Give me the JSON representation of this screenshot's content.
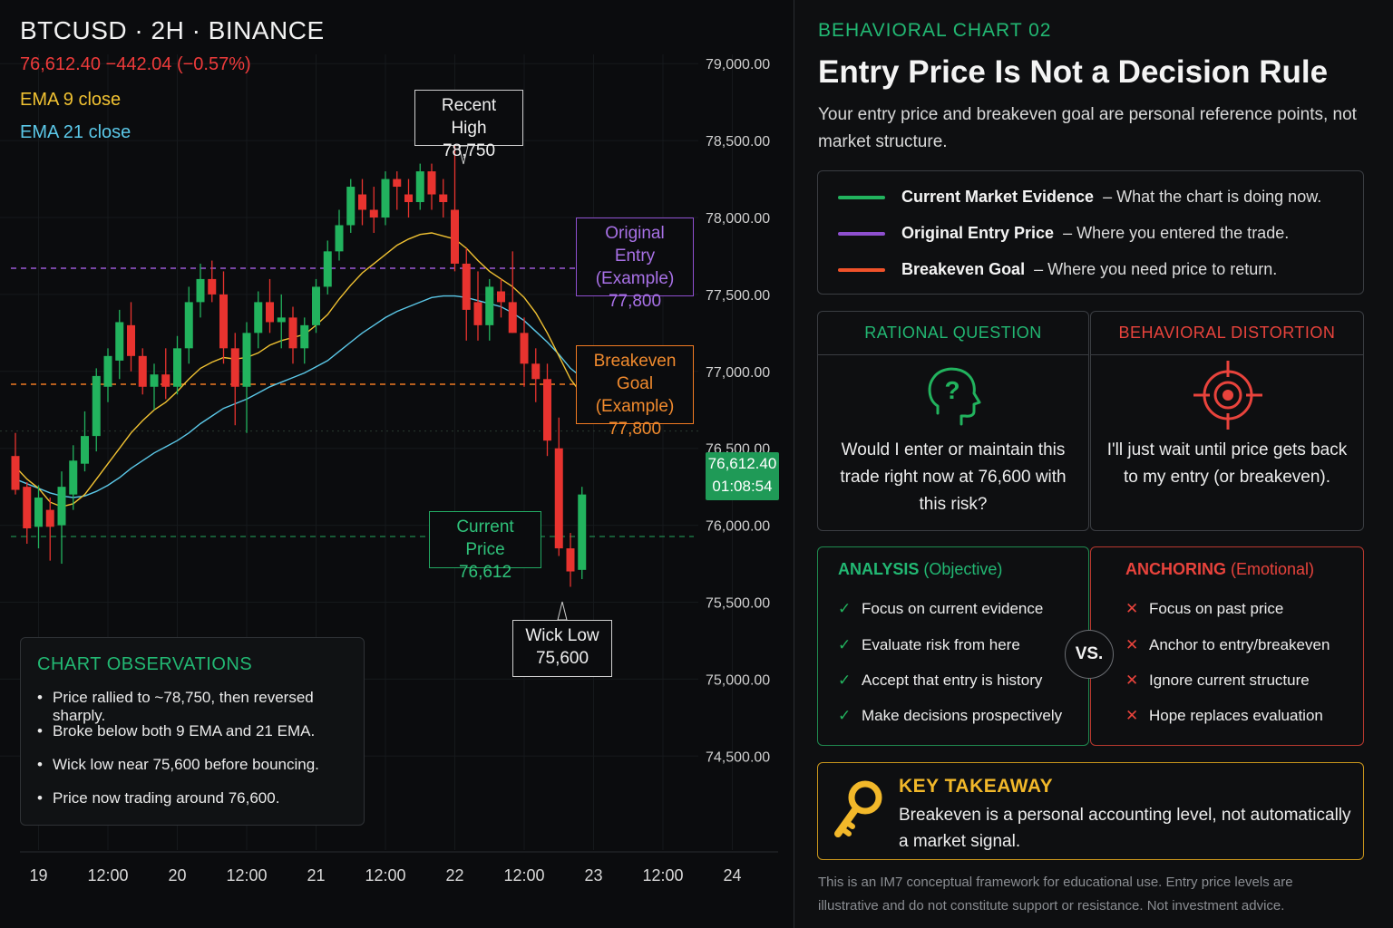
{
  "header": {
    "symbol": "BTCUSD · 2H · BINANCE",
    "quote": "76,612.40  −442.04 (−0.57%)",
    "ema9_label": "EMA 9 close",
    "ema21_label": "EMA 21 close"
  },
  "callouts": {
    "recent_high": [
      "Recent High",
      "78,750"
    ],
    "original_entry": [
      "Original Entry",
      "(Example)",
      "77,800"
    ],
    "breakeven_goal": [
      "Breakeven Goal",
      "(Example)",
      "77,800"
    ],
    "current_price": [
      "Current Price",
      "76,612"
    ],
    "wick_low": [
      "Wick Low",
      "75,600"
    ]
  },
  "price_tag": {
    "price": "76,612.40",
    "countdown": "01:08:54",
    "overlapped_label": "76,000.00"
  },
  "observations": {
    "title": "CHART OBSERVATIONS",
    "items": [
      "Price rallied to ~78,750, then reversed sharply.",
      "Broke below both 9 EMA and 21 EMA.",
      "Wick low near 75,600 before bouncing.",
      "Price now trading around 76,600."
    ]
  },
  "colors": {
    "up": "#22b35e",
    "down": "#e8332f",
    "ema9": "#f1c232",
    "ema21": "#5bc8e8",
    "entry": "#9b59d6",
    "breakeven": "#f07a22",
    "accent_green": "#22b873",
    "accent_red": "#e8433c",
    "key_gold": "#f2b82a"
  },
  "chart_data": {
    "type": "candlestick",
    "title": "BTCUSD · 2H · BINANCE",
    "ylim": [
      74250,
      79200
    ],
    "y_ticks": [
      "79,000.00",
      "78,500.00",
      "78,000.00",
      "77,500.00",
      "77,000.00",
      "76,500.00",
      "76,000.00",
      "75,500.00",
      "75,000.00",
      "74,500.00"
    ],
    "y_tick_values": [
      79000,
      78500,
      78000,
      77500,
      77000,
      76500,
      76000,
      75500,
      75000,
      74500
    ],
    "x_ticks": [
      "19",
      "12:00",
      "20",
      "12:00",
      "21",
      "12:00",
      "22",
      "12:00",
      "23",
      "12:00",
      "24"
    ],
    "x_tick_index": [
      2,
      8,
      14,
      20,
      26,
      32,
      38,
      44,
      50,
      56,
      62
    ],
    "candles": [
      [
        76450,
        76600,
        76200,
        76230
      ],
      [
        76250,
        76280,
        75880,
        75980
      ],
      [
        75990,
        76260,
        75850,
        76180
      ],
      [
        76100,
        76180,
        75770,
        75990
      ],
      [
        76000,
        76350,
        75750,
        76250
      ],
      [
        76200,
        76520,
        76100,
        76420
      ],
      [
        76400,
        76740,
        76350,
        76580
      ],
      [
        76580,
        77020,
        76480,
        76970
      ],
      [
        76900,
        77150,
        76800,
        77100
      ],
      [
        77070,
        77400,
        76950,
        77320
      ],
      [
        77300,
        77450,
        77000,
        77100
      ],
      [
        77100,
        77150,
        76850,
        76900
      ],
      [
        76900,
        77050,
        76750,
        76980
      ],
      [
        76980,
        77150,
        76820,
        76900
      ],
      [
        76900,
        77230,
        76850,
        77150
      ],
      [
        77150,
        77550,
        77050,
        77450
      ],
      [
        77450,
        77700,
        77350,
        77600
      ],
      [
        77600,
        77720,
        77450,
        77500
      ],
      [
        77500,
        77650,
        77050,
        77150
      ],
      [
        77150,
        77250,
        76650,
        76900
      ],
      [
        76900,
        77320,
        76600,
        77250
      ],
      [
        77250,
        77520,
        77150,
        77450
      ],
      [
        77450,
        77600,
        77250,
        77320
      ],
      [
        77320,
        77500,
        77150,
        77350
      ],
      [
        77350,
        77420,
        77050,
        77150
      ],
      [
        77150,
        77350,
        77050,
        77300
      ],
      [
        77300,
        77600,
        77250,
        77550
      ],
      [
        77550,
        77850,
        77500,
        77780
      ],
      [
        77780,
        78050,
        77720,
        77950
      ],
      [
        77950,
        78250,
        77900,
        78200
      ],
      [
        78150,
        78250,
        77950,
        78050
      ],
      [
        78050,
        78200,
        77900,
        78000
      ],
      [
        78000,
        78300,
        77950,
        78250
      ],
      [
        78250,
        78300,
        78050,
        78200
      ],
      [
        78150,
        78250,
        78000,
        78100
      ],
      [
        78100,
        78350,
        78050,
        78300
      ],
      [
        78300,
        78350,
        78050,
        78150
      ],
      [
        78150,
        78250,
        78000,
        78100
      ],
      [
        78050,
        78750,
        77650,
        77700
      ],
      [
        77700,
        77800,
        77200,
        77400
      ],
      [
        77450,
        77650,
        77200,
        77300
      ],
      [
        77300,
        77600,
        77200,
        77550
      ],
      [
        77520,
        77600,
        77350,
        77450
      ],
      [
        77450,
        77780,
        77250,
        77250
      ],
      [
        77250,
        77350,
        76900,
        77050
      ],
      [
        77050,
        77150,
        76800,
        76950
      ],
      [
        76950,
        77050,
        76450,
        76550
      ],
      [
        76500,
        76700,
        75800,
        75850
      ],
      [
        75850,
        75950,
        75600,
        75700
      ],
      [
        75710,
        76250,
        75650,
        76200
      ]
    ],
    "ema9": [
      76380,
      76300,
      76240,
      76150,
      76120,
      76140,
      76200,
      76300,
      76400,
      76500,
      76600,
      76680,
      76750,
      76800,
      76870,
      76950,
      77020,
      77060,
      77090,
      77080,
      77090,
      77120,
      77170,
      77200,
      77220,
      77240,
      77300,
      77370,
      77470,
      77560,
      77640,
      77700,
      77760,
      77820,
      77860,
      77890,
      77900,
      77880,
      77860,
      77800,
      77720,
      77650,
      77600,
      77550,
      77480,
      77380,
      77250,
      77100,
      76950,
      76850
    ],
    "ema21": [
      76300,
      76270,
      76240,
      76210,
      76190,
      76180,
      76190,
      76220,
      76260,
      76310,
      76370,
      76420,
      76470,
      76510,
      76550,
      76600,
      76660,
      76710,
      76760,
      76790,
      76820,
      76860,
      76900,
      76930,
      76960,
      76990,
      77030,
      77070,
      77130,
      77190,
      77250,
      77300,
      77350,
      77390,
      77420,
      77450,
      77480,
      77490,
      77490,
      77480,
      77460,
      77440,
      77420,
      77380,
      77330,
      77260,
      77190,
      77110,
      77020,
      76960
    ],
    "levels": {
      "original_entry": 77800,
      "breakeven_goal": 77800,
      "current_price": 76612.4
    }
  },
  "panel": {
    "kicker": "BEHAVIORAL CHART 02",
    "title": "Entry Price Is Not a Decision Rule",
    "subtitle": "Your entry price and breakeven goal are personal reference points, not market structure.",
    "legend": [
      {
        "name": "Current Market Evidence",
        "desc": "–  What the chart is doing now.",
        "color": "#22b35e"
      },
      {
        "name": "Original Entry Price",
        "desc": "–  Where you entered the trade.",
        "color": "#8e4fcf"
      },
      {
        "name": "Breakeven Goal",
        "desc": "–  Where you need price to return.",
        "color": "#f0522a"
      }
    ],
    "rational": {
      "header": "RATIONAL QUESTION",
      "text": "Would I enter or maintain this trade right now at 76,600 with this risk?",
      "icon": "head-question-icon"
    },
    "distortion": {
      "header": "BEHAVIORAL DISTORTION",
      "text": "I'll just wait until price gets back to my entry (or breakeven).",
      "icon": "target-icon"
    },
    "analysis": {
      "header": "ANALYSIS",
      "header_note": "(Objective)",
      "items": [
        "Focus on current evidence",
        "Evaluate risk from here",
        "Accept that entry is history",
        "Make decisions prospectively"
      ]
    },
    "anchoring": {
      "header": "ANCHORING",
      "header_note": "(Emotional)",
      "items": [
        "Focus on past price",
        "Anchor to entry/breakeven",
        "Ignore current structure",
        "Hope replaces evaluation"
      ]
    },
    "vs": "VS.",
    "takeaway": {
      "title": "KEY TAKEAWAY",
      "text": "Breakeven is a personal accounting level, not automatically a market signal."
    },
    "disclaimer": "This is an IM7 conceptual framework for educational use. Entry price levels are illustrative and do not constitute support or resistance. Not investment advice."
  }
}
